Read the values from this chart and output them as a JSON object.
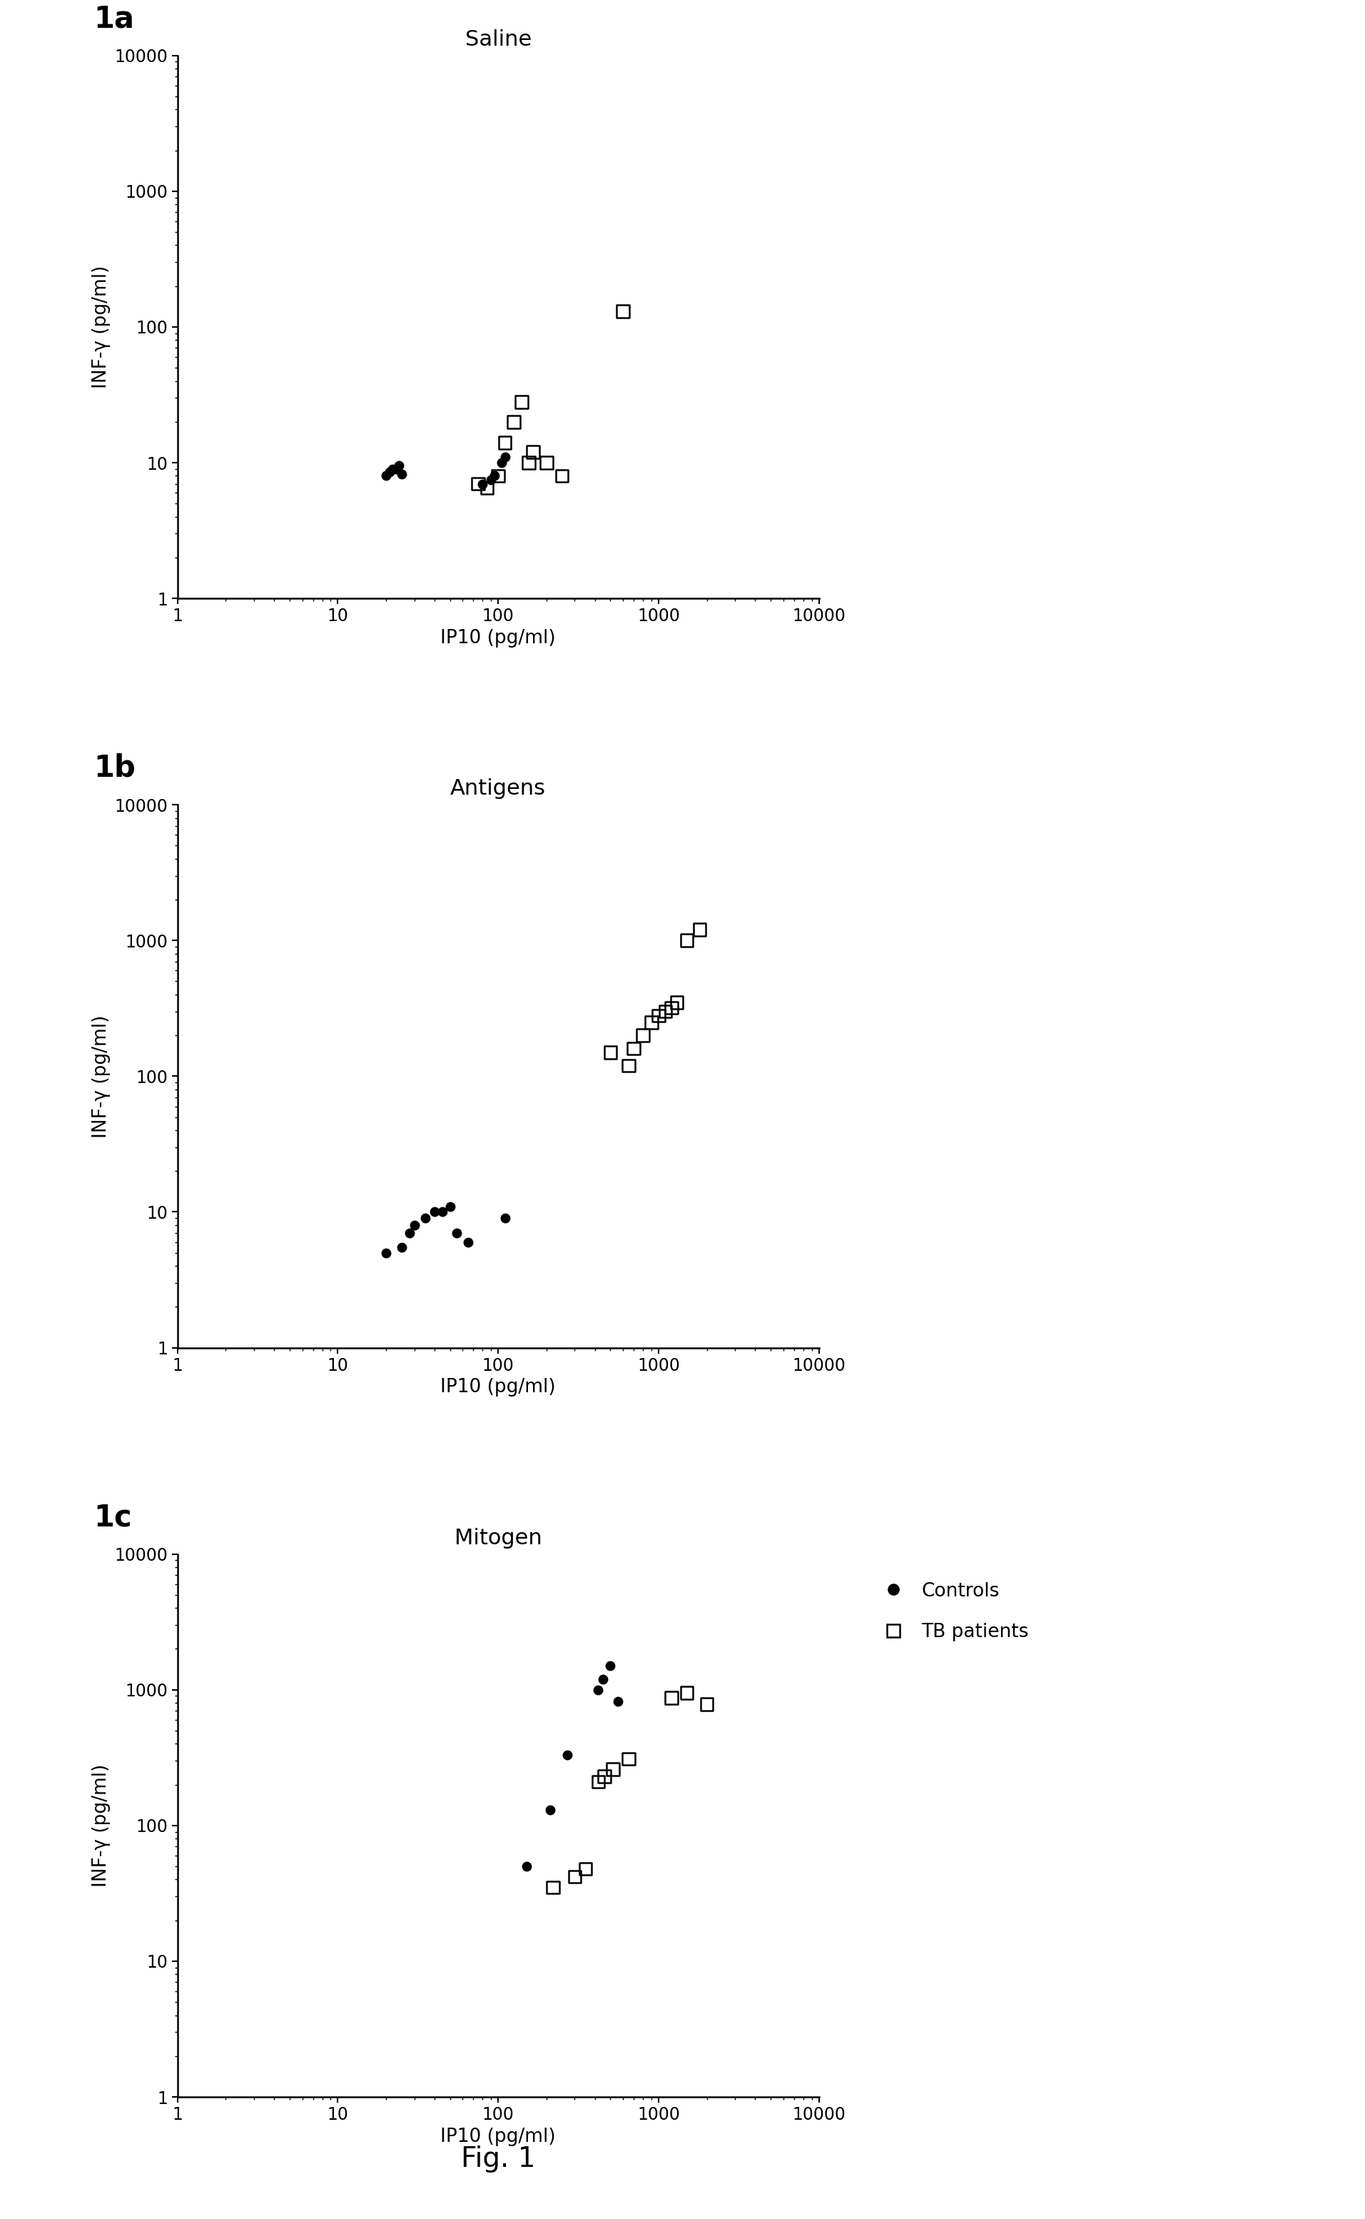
{
  "panel_a": {
    "title": "Saline",
    "label": "1a",
    "controls_x": [
      20,
      21,
      22,
      23,
      24,
      25,
      80,
      90,
      95,
      105,
      110
    ],
    "controls_y": [
      8,
      8.5,
      9,
      9,
      9.5,
      8.2,
      7,
      7.5,
      8,
      10,
      11
    ],
    "patients_x": [
      75,
      85,
      100,
      110,
      125,
      140,
      155,
      165,
      200,
      250,
      600
    ],
    "patients_y": [
      7,
      6.5,
      8,
      14,
      20,
      28,
      10,
      12,
      10,
      8,
      130
    ]
  },
  "panel_b": {
    "title": "Antigens",
    "label": "1b",
    "controls_x": [
      20,
      25,
      28,
      30,
      35,
      40,
      45,
      50,
      55,
      65,
      110
    ],
    "controls_y": [
      5,
      5.5,
      7,
      8,
      9,
      10,
      10,
      11,
      7,
      6,
      9
    ],
    "patients_x": [
      500,
      650,
      700,
      800,
      900,
      1000,
      1100,
      1200,
      1300,
      1500,
      1800
    ],
    "patients_y": [
      150,
      120,
      160,
      200,
      250,
      280,
      300,
      320,
      350,
      1000,
      1200
    ]
  },
  "panel_c": {
    "title": "Mitogen",
    "label": "1c",
    "controls_x": [
      150,
      210,
      270,
      420,
      450,
      500,
      560
    ],
    "controls_y": [
      50,
      130,
      330,
      1000,
      1200,
      1500,
      820
    ],
    "patients_x": [
      220,
      300,
      350,
      420,
      460,
      520,
      650,
      1200,
      1500,
      2000
    ],
    "patients_y": [
      35,
      42,
      48,
      210,
      230,
      260,
      310,
      870,
      950,
      780
    ]
  },
  "xlabel": "IP10 (pg/ml)",
  "ylabel": "INF-γ (pg/ml)",
  "legend_controls": "Controls",
  "legend_patients": "TB patients",
  "fig_label": "Fig. 1",
  "xlim": [
    1,
    10000
  ],
  "ylim": [
    1,
    10000
  ]
}
